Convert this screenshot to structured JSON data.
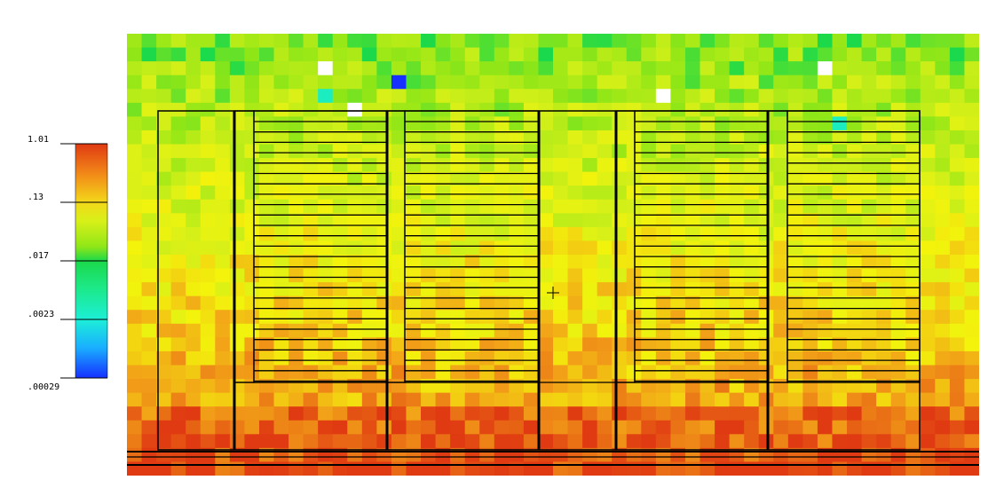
{
  "chart_data": {
    "type": "heatmap",
    "title": "",
    "xlabel": "",
    "ylabel": "",
    "color_scale": {
      "scale": "log",
      "range": [
        0.00029,
        1.01
      ],
      "tick_labels": [
        "1.01",
        ".13",
        ".017",
        ".0023",
        ".00029"
      ],
      "tick_values": [
        1.01,
        0.13,
        0.017,
        0.0023,
        0.00029
      ],
      "colors": [
        "#e03a12",
        "#f0b020",
        "#f3f30c",
        "#8fe617",
        "#1bd94a",
        "#1cefb7",
        "#1ad8ff",
        "#1ca0ff",
        "#1530ff"
      ]
    },
    "grid": false,
    "rows": 32,
    "cols": 58,
    "value_profile": "low values (~0.02-0.05) in top rows, mid values (~0.1-0.2) in middle, high values (~0.3-0.6) along bottom edge",
    "notable_cells": [
      {
        "value": 0.00029,
        "row": 3,
        "col": 18,
        "note": "blue cell"
      },
      {
        "value": 1.0,
        "row": 2,
        "col": 13,
        "note": "white cell"
      },
      {
        "value": 1.0,
        "row": 2,
        "col": 47,
        "note": "white cell"
      },
      {
        "value": 1.0,
        "row": 5,
        "col": 15,
        "note": "white cell"
      },
      {
        "value": 1.0,
        "row": 4,
        "col": 36,
        "note": "white cell"
      },
      {
        "value": 0.003,
        "row": 4,
        "col": 13,
        "note": "cyan cell"
      },
      {
        "value": 0.003,
        "row": 6,
        "col": 48,
        "note": "cyan cell"
      }
    ],
    "cursor": "crosshair"
  }
}
